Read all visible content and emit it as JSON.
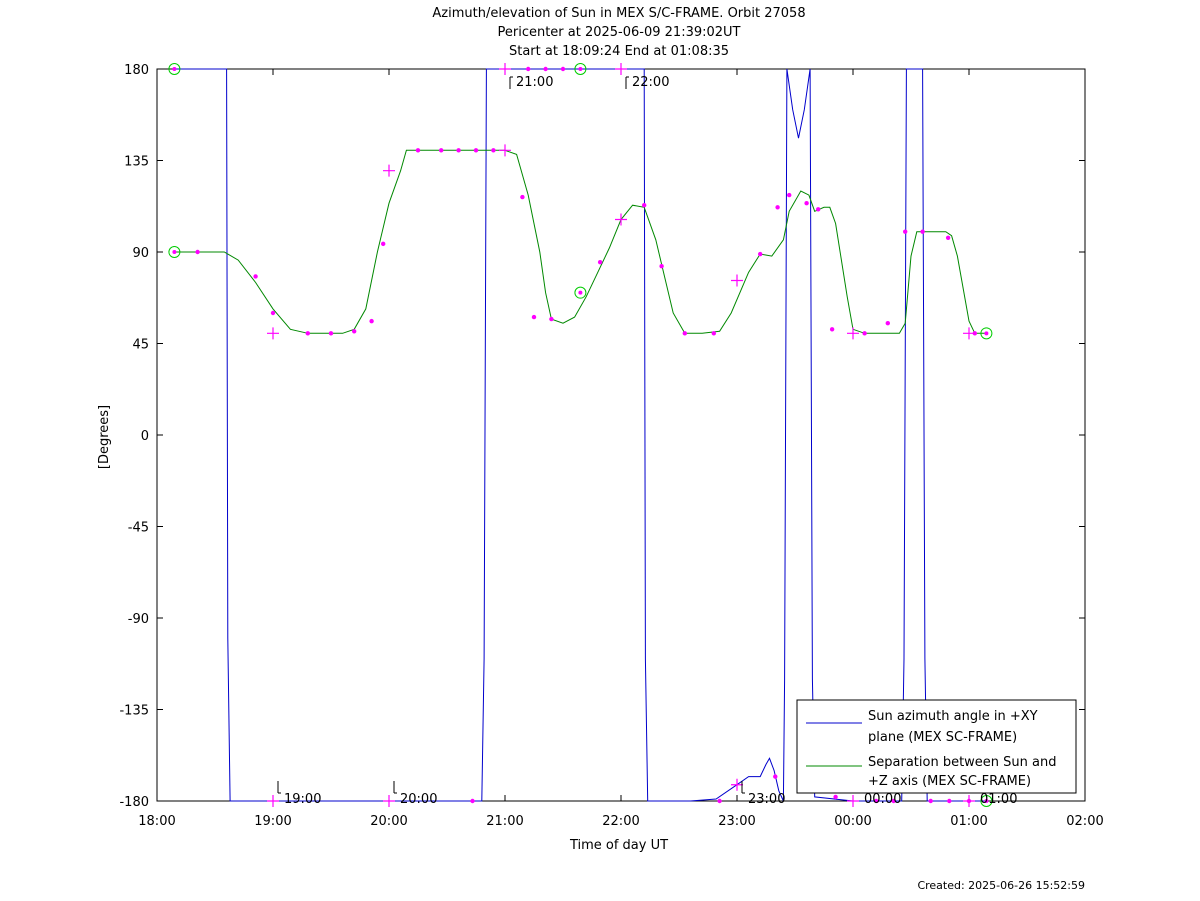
{
  "chart_data": {
    "type": "line",
    "title": "Azimuth/elevation of Sun in MEX S/C-FRAME.  Orbit 27058",
    "subtitle_lines": [
      "Pericenter at 2025-06-09 21:39:02UT",
      "Start at 18:09:24 End at 01:08:35"
    ],
    "xlabel": "Time of day UT",
    "ylabel": "[Degrees]",
    "xlim": [
      18.0,
      26.0
    ],
    "ylim": [
      -180,
      180
    ],
    "x_unit": "hours since 18:00 UT (values > 24 are after midnight)",
    "x_ticks": [
      {
        "v": 18,
        "label": "18:00"
      },
      {
        "v": 19,
        "label": "19:00"
      },
      {
        "v": 20,
        "label": "20:00"
      },
      {
        "v": 21,
        "label": "21:00"
      },
      {
        "v": 22,
        "label": "22:00"
      },
      {
        "v": 23,
        "label": "23:00"
      },
      {
        "v": 24,
        "label": "00:00"
      },
      {
        "v": 25,
        "label": "01:00"
      },
      {
        "v": 26,
        "label": "02:00"
      }
    ],
    "y_ticks": [
      {
        "v": 180,
        "label": "180"
      },
      {
        "v": 135,
        "label": "135"
      },
      {
        "v": 90,
        "label": "90"
      },
      {
        "v": 45,
        "label": "45"
      },
      {
        "v": 0,
        "label": "0"
      },
      {
        "v": -45,
        "label": "-45"
      },
      {
        "v": -90,
        "label": "-90"
      },
      {
        "v": -135,
        "label": "-135"
      },
      {
        "v": -180,
        "label": "-180"
      }
    ],
    "time_marks": [
      {
        "x": 19.0,
        "y": -180,
        "label": "19:00"
      },
      {
        "x": 20.0,
        "y": -180,
        "label": "20:00"
      },
      {
        "x": 21.0,
        "y": 180,
        "label": "21:00"
      },
      {
        "x": 22.0,
        "y": 180,
        "label": "22:00"
      },
      {
        "x": 23.0,
        "y": -180,
        "label": "23:00"
      },
      {
        "x": 24.0,
        "y": -180,
        "label": "00:00"
      },
      {
        "x": 25.0,
        "y": -180,
        "label": "01:00"
      }
    ],
    "legend_position": "bottom-right",
    "series": [
      {
        "name": "Sun azimuth angle in +XY plane (MEX SC-FRAME)",
        "legend_lines": [
          "Sun azimuth angle in +XY",
          "plane (MEX SC-FRAME)"
        ],
        "color": "#0000cc",
        "points": [
          [
            18.15,
            180
          ],
          [
            18.6,
            180
          ],
          [
            18.61,
            -100
          ],
          [
            18.63,
            -180
          ],
          [
            20.0,
            -180
          ],
          [
            20.8,
            -180
          ],
          [
            20.82,
            -110
          ],
          [
            20.84,
            180
          ],
          [
            21.5,
            180
          ],
          [
            22.2,
            180
          ],
          [
            22.21,
            -110
          ],
          [
            22.23,
            -180
          ],
          [
            22.6,
            -180
          ],
          [
            22.82,
            -179
          ],
          [
            23.0,
            -172
          ],
          [
            23.1,
            -168
          ],
          [
            23.2,
            -168
          ],
          [
            23.25,
            -162
          ],
          [
            23.28,
            -159
          ],
          [
            23.32,
            -165
          ],
          [
            23.36,
            -175
          ],
          [
            23.4,
            -180
          ],
          [
            23.41,
            -120
          ],
          [
            23.43,
            180
          ],
          [
            23.48,
            160
          ],
          [
            23.53,
            146
          ],
          [
            23.58,
            160
          ],
          [
            23.63,
            180
          ],
          [
            23.65,
            -120
          ],
          [
            23.67,
            -178
          ],
          [
            24.0,
            -180
          ],
          [
            24.42,
            -180
          ],
          [
            24.44,
            -110
          ],
          [
            24.46,
            180
          ],
          [
            24.6,
            180
          ],
          [
            24.62,
            -110
          ],
          [
            24.64,
            -180
          ],
          [
            25.15,
            -180
          ]
        ],
        "markers": [
          [
            20.72,
            -180
          ],
          [
            21.2,
            180
          ],
          [
            21.35,
            180
          ],
          [
            21.5,
            180
          ],
          [
            22.85,
            -180
          ],
          [
            23.33,
            -168
          ],
          [
            23.65,
            -175
          ],
          [
            23.85,
            -178
          ],
          [
            24.2,
            -180
          ],
          [
            24.35,
            -180
          ],
          [
            24.67,
            -180
          ],
          [
            24.83,
            -180
          ],
          [
            25.0,
            -180
          ]
        ]
      },
      {
        "name": "Separation between Sun and +Z axis (MEX SC-FRAME)",
        "legend_lines": [
          "Separation between Sun and",
          "+Z axis (MEX SC-FRAME)"
        ],
        "color": "#008800",
        "points": [
          [
            18.15,
            90
          ],
          [
            18.58,
            90
          ],
          [
            18.7,
            86
          ],
          [
            18.85,
            75
          ],
          [
            19.0,
            62
          ],
          [
            19.15,
            52
          ],
          [
            19.3,
            50
          ],
          [
            19.5,
            50
          ],
          [
            19.6,
            50
          ],
          [
            19.7,
            52
          ],
          [
            19.8,
            62
          ],
          [
            19.9,
            90
          ],
          [
            20.0,
            114
          ],
          [
            20.1,
            130
          ],
          [
            20.15,
            140
          ],
          [
            20.5,
            140
          ],
          [
            21.0,
            140
          ],
          [
            21.1,
            138
          ],
          [
            21.2,
            118
          ],
          [
            21.3,
            90
          ],
          [
            21.35,
            70
          ],
          [
            21.4,
            57
          ],
          [
            21.5,
            55
          ],
          [
            21.6,
            58
          ],
          [
            21.7,
            68
          ],
          [
            21.8,
            80
          ],
          [
            21.9,
            92
          ],
          [
            22.0,
            106
          ],
          [
            22.1,
            113
          ],
          [
            22.2,
            112
          ],
          [
            22.3,
            96
          ],
          [
            22.35,
            84
          ],
          [
            22.45,
            60
          ],
          [
            22.55,
            50
          ],
          [
            22.7,
            50
          ],
          [
            22.85,
            51
          ],
          [
            22.95,
            60
          ],
          [
            23.1,
            80
          ],
          [
            23.2,
            89
          ],
          [
            23.3,
            88
          ],
          [
            23.4,
            96
          ],
          [
            23.45,
            110
          ],
          [
            23.55,
            120
          ],
          [
            23.62,
            118
          ],
          [
            23.67,
            110
          ],
          [
            23.75,
            112
          ],
          [
            23.8,
            112
          ],
          [
            23.85,
            104
          ],
          [
            23.95,
            68
          ],
          [
            24.0,
            52
          ],
          [
            24.1,
            50
          ],
          [
            24.4,
            50
          ],
          [
            24.45,
            55
          ],
          [
            24.5,
            88
          ],
          [
            24.55,
            100
          ],
          [
            24.8,
            100
          ],
          [
            24.85,
            98
          ],
          [
            24.9,
            88
          ],
          [
            25.0,
            56
          ],
          [
            25.05,
            50
          ],
          [
            25.15,
            50
          ]
        ],
        "markers": [
          [
            18.35,
            90
          ],
          [
            18.85,
            78
          ],
          [
            19.0,
            60
          ],
          [
            19.3,
            50
          ],
          [
            19.5,
            50
          ],
          [
            19.7,
            51
          ],
          [
            19.85,
            56
          ],
          [
            19.95,
            94
          ],
          [
            20.25,
            140
          ],
          [
            20.45,
            140
          ],
          [
            20.6,
            140
          ],
          [
            20.75,
            140
          ],
          [
            20.9,
            140
          ],
          [
            21.15,
            117
          ],
          [
            21.25,
            58
          ],
          [
            21.4,
            57
          ],
          [
            21.82,
            85
          ],
          [
            22.2,
            113
          ],
          [
            22.35,
            83
          ],
          [
            22.55,
            50
          ],
          [
            22.8,
            50
          ],
          [
            23.2,
            89
          ],
          [
            23.35,
            112
          ],
          [
            23.45,
            118
          ],
          [
            23.6,
            114
          ],
          [
            23.7,
            111
          ],
          [
            23.82,
            52
          ],
          [
            24.1,
            50
          ],
          [
            24.3,
            55
          ],
          [
            24.45,
            100
          ],
          [
            24.6,
            100
          ],
          [
            24.82,
            97
          ],
          [
            25.05,
            50
          ]
        ]
      }
    ],
    "cross_markers": [
      [
        19.0,
        50
      ],
      [
        20.0,
        130
      ],
      [
        21.0,
        140
      ],
      [
        22.0,
        106
      ],
      [
        23.0,
        76
      ],
      [
        24.0,
        50
      ],
      [
        25.0,
        50
      ],
      [
        19.0,
        -180
      ],
      [
        20.0,
        -180
      ],
      [
        21.0,
        180
      ],
      [
        22.0,
        180
      ],
      [
        23.0,
        -172
      ],
      [
        24.0,
        -180
      ],
      [
        25.0,
        -180
      ]
    ],
    "circle_markers": [
      [
        18.15,
        90
      ],
      [
        18.15,
        180
      ],
      [
        21.65,
        70
      ],
      [
        21.65,
        180
      ],
      [
        25.15,
        50
      ],
      [
        25.15,
        -180
      ]
    ]
  },
  "footer": {
    "created": "Created: 2025-06-26 15:52:59"
  }
}
